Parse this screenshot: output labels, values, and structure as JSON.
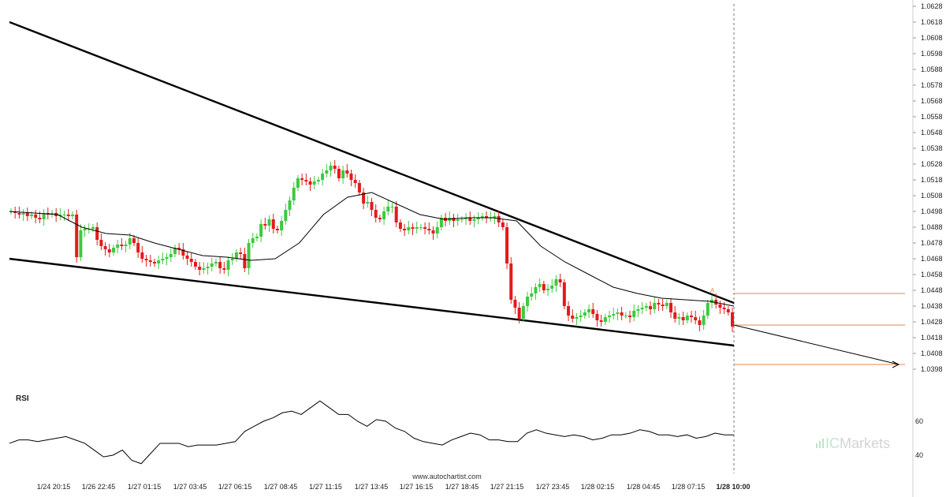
{
  "chart_data": {
    "type": "candlestick",
    "y_axis": {
      "range": [
        1.039,
        1.063
      ],
      "ticks": [
        "1.0628",
        "1.0618",
        "1.0608",
        "1.0598",
        "1.0588",
        "1.0578",
        "1.0568",
        "1.0558",
        "1.0548",
        "1.0538",
        "1.0528",
        "1.0518",
        "1.0508",
        "1.0498",
        "1.0488",
        "1.0478",
        "1.0468",
        "1.0458",
        "1.0448",
        "1.0438",
        "1.0428",
        "1.0418",
        "1.0408",
        "1.0398"
      ]
    },
    "x_axis": {
      "ticks": [
        "1/24 20:15",
        "1/26 22:45",
        "1/27 01:15",
        "1/27 03:45",
        "1/27 06:15",
        "1/27 08:45",
        "1/27 11:15",
        "1/27 13:45",
        "1/27 16:15",
        "1/27 18:45",
        "1/27 21:15",
        "1/27 23:45",
        "1/28 02:15",
        "1/28 04:45",
        "1/28 07:15",
        "1/28 10:00"
      ],
      "highlighted_tick": "1/28 10:00"
    },
    "candles_close": [
      1.0498,
      1.0497,
      1.0496,
      1.0497,
      1.0495,
      1.0496,
      1.0494,
      1.0493,
      1.0497,
      1.0496,
      1.0497,
      1.0495,
      1.0496,
      1.0496,
      1.0495,
      1.0496,
      1.0469,
      1.0486,
      1.0487,
      1.0487,
      1.0488,
      1.048,
      1.0476,
      1.0474,
      1.0472,
      1.0475,
      1.0477,
      1.0476,
      1.0477,
      1.0481,
      1.0478,
      1.0472,
      1.0468,
      1.0467,
      1.0466,
      1.0465,
      1.0467,
      1.0468,
      1.0469,
      1.0471,
      1.0475,
      1.0474,
      1.047,
      1.0468,
      1.0466,
      1.0463,
      1.0461,
      1.0462,
      1.0463,
      1.0465,
      1.0466,
      1.0462,
      1.0461,
      1.0467,
      1.0468,
      1.0472,
      1.0471,
      1.0462,
      1.0478,
      1.0481,
      1.0482,
      1.049,
      1.0489,
      1.0493,
      1.0487,
      1.0486,
      1.0492,
      1.0499,
      1.0505,
      1.0513,
      1.0519,
      1.0518,
      1.0517,
      1.0515,
      1.0517,
      1.0518,
      1.0522,
      1.0524,
      1.0527,
      1.0525,
      1.0519,
      1.0524,
      1.0522,
      1.0518,
      1.0516,
      1.051,
      1.0503,
      1.0504,
      1.0499,
      1.0494,
      1.0493,
      1.0498,
      1.0501,
      1.0501,
      1.0491,
      1.0487,
      1.0486,
      1.0488,
      1.0487,
      1.0488,
      1.0488,
      1.0487,
      1.0486,
      1.0484,
      1.0488,
      1.0494,
      1.0492,
      1.0494,
      1.0492,
      1.0493,
      1.0493,
      1.0494,
      1.0492,
      1.0493,
      1.0494,
      1.0495,
      1.0494,
      1.0494,
      1.0495,
      1.0491,
      1.0488,
      1.0465,
      1.0442,
      1.0437,
      1.043,
      1.0438,
      1.0444,
      1.0446,
      1.045,
      1.0452,
      1.0448,
      1.0449,
      1.0451,
      1.0455,
      1.0453,
      1.0438,
      1.0432,
      1.043,
      1.0431,
      1.0432,
      1.0434,
      1.0436,
      1.0433,
      1.0429,
      1.0428,
      1.0431,
      1.0432,
      1.0433,
      1.0434,
      1.0432,
      1.0432,
      1.0431,
      1.0435,
      1.0436,
      1.0437,
      1.0438,
      1.0436,
      1.044,
      1.0439,
      1.0438,
      1.044,
      1.0434,
      1.043,
      1.0431,
      1.0429,
      1.0432,
      1.0431,
      1.0429,
      1.0426,
      1.0432,
      1.044,
      1.0442,
      1.0439,
      1.0437,
      1.0436,
      1.0434,
      1.0425
    ],
    "moving_average": [
      1.0498,
      1.0497,
      1.0496,
      1.0488,
      1.0484,
      1.0483,
      1.0478,
      1.0474,
      1.047,
      1.0469,
      1.0467,
      1.0468,
      1.0478,
      1.0496,
      1.0507,
      1.051,
      1.0503,
      1.0496,
      1.0493,
      1.0494,
      1.0494,
      1.0492,
      1.0476,
      1.0466,
      1.0458,
      1.045,
      1.0446,
      1.0443,
      1.0442,
      1.0441,
      1.0438
    ],
    "trend_lines": [
      {
        "name": "resistance",
        "points": [
          [
            "1/24 18:30",
            1.0618
          ],
          [
            "1/28 10:00",
            1.044
          ]
        ]
      },
      {
        "name": "support",
        "points": [
          [
            "1/24 18:30",
            1.0468
          ],
          [
            "1/28 10:00",
            1.0413
          ]
        ]
      }
    ],
    "projection": {
      "from": 1.0426,
      "to": 1.0401
    },
    "levels": [
      1.0446,
      1.0426,
      1.0401
    ],
    "marker": "A",
    "rsi": {
      "label": "RSI",
      "ticks": [
        "60",
        "40"
      ],
      "values": [
        47,
        49,
        49,
        48,
        49,
        50,
        51,
        49,
        47,
        43,
        39,
        40,
        43,
        37,
        35,
        41,
        47,
        47,
        47,
        45,
        46,
        46,
        46,
        47,
        48,
        54,
        57,
        60,
        62,
        65,
        66,
        64,
        68,
        72,
        68,
        64,
        64,
        60,
        57,
        61,
        60,
        56,
        54,
        50,
        48,
        47,
        46,
        49,
        51,
        53,
        52,
        49,
        49,
        48,
        48,
        53,
        55,
        53,
        52,
        51,
        52,
        51,
        49,
        50,
        52,
        52,
        53,
        55,
        54,
        52,
        52,
        51,
        52,
        50,
        51,
        53,
        52,
        52
      ]
    },
    "colors": {
      "bull": "#3ec93e",
      "bear": "#e31b1b",
      "levels": "#e8864c",
      "lines": "#000000"
    }
  },
  "watermark": "www.autochartist.com",
  "brand": {
    "prefix": "IC",
    "name": "Markets"
  }
}
